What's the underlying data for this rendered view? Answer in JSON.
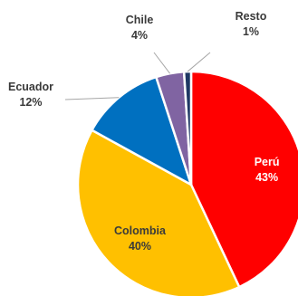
{
  "chart_data": {
    "type": "pie",
    "title": "",
    "unit": "%",
    "slices": [
      {
        "label": "Perú",
        "value": 43,
        "value_label": "43%",
        "color": "#ff0000"
      },
      {
        "label": "Colombia",
        "value": 40,
        "value_label": "40%",
        "color": "#ffc000"
      },
      {
        "label": "Ecuador",
        "value": 12,
        "value_label": "12%",
        "color": "#0070c0"
      },
      {
        "label": "Chile",
        "value": 4,
        "value_label": "4%",
        "color": "#8064a2"
      },
      {
        "label": "Resto",
        "value": 1,
        "value_label": "1%",
        "color": "#1f3864"
      }
    ],
    "start_position": "top",
    "direction": "clockwise",
    "legend": "none",
    "data_labels": "category and percentage",
    "slice_border_color": "#ffffff"
  }
}
